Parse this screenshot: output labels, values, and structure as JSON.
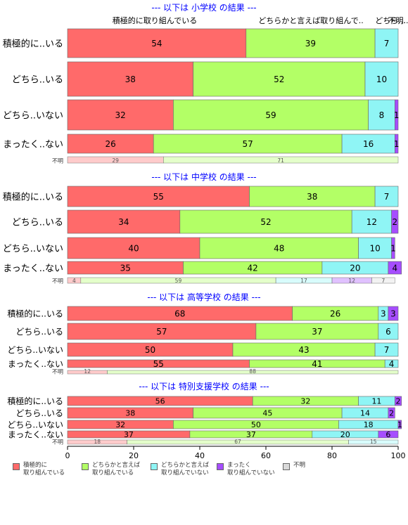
{
  "colors": {
    "c1": "#ff6a6a",
    "c2": "#b3ff66",
    "c3": "#8ff5f5",
    "c4": "#a64dff",
    "c5": "#d9d9d9",
    "title": "#0000ff"
  },
  "legend": [
    {
      "label_1": "積極的に",
      "label_2": "取り組んでいる",
      "color": "#ff6a6a"
    },
    {
      "label_1": "どちらかと言えば",
      "label_2": "取り組んでいる",
      "color": "#b3ff66"
    },
    {
      "label_1": "どちらかと言えば",
      "label_2": "取り組んでいない",
      "color": "#8ff5f5"
    },
    {
      "label_1": "まったく",
      "label_2": "取り組んでいない",
      "color": "#a64dff"
    },
    {
      "label_1": "不明",
      "label_2": "",
      "color": "#d9d9d9"
    }
  ],
  "chart_data": {
    "type": "bar",
    "orientation": "horizontal-stacked",
    "xlim": [
      0,
      100
    ],
    "x_ticks": [
      0,
      20,
      40,
      60,
      80,
      100
    ],
    "header_labels": [
      "積極的に取り組んでいる",
      "どちらかと言えば取り組んで..",
      "どちら...",
      "不明.."
    ],
    "panels": [
      {
        "title": "--- 以下は 小学校 の結果 ---",
        "rows": [
          {
            "label": "積極的に..いる",
            "values": [
              54,
              39,
              7,
              0,
              0
            ]
          },
          {
            "label": "どちら..いる",
            "values": [
              38,
              52,
              10,
              0,
              0
            ]
          },
          {
            "label": "どちら..いない",
            "values": [
              32,
              59,
              8,
              1,
              0
            ]
          },
          {
            "label": "まったく..ない",
            "values": [
              26,
              57,
              16,
              1,
              0
            ]
          }
        ],
        "unknown": {
          "label": "不明",
          "values": [
            29,
            71,
            0,
            0,
            0
          ]
        }
      },
      {
        "title": "--- 以下は 中学校 の結果 ---",
        "rows": [
          {
            "label": "積極的に..いる",
            "values": [
              55,
              38,
              7,
              0,
              0
            ]
          },
          {
            "label": "どちら..いる",
            "values": [
              34,
              52,
              12,
              2,
              0
            ]
          },
          {
            "label": "どちら..いない",
            "values": [
              40,
              48,
              10,
              1,
              0
            ]
          },
          {
            "label": "まったく..ない",
            "values": [
              35,
              42,
              20,
              4,
              0
            ]
          }
        ],
        "unknown": {
          "label": "不明",
          "values": [
            4,
            59,
            17,
            12,
            7
          ]
        }
      },
      {
        "title": "--- 以下は 高等学校 の結果 ---",
        "rows": [
          {
            "label": "積極的に..いる",
            "values": [
              68,
              26,
              3,
              3,
              0
            ]
          },
          {
            "label": "どちら..いる",
            "values": [
              57,
              37,
              6,
              0,
              0
            ]
          },
          {
            "label": "どちら..いない",
            "values": [
              50,
              43,
              7,
              0,
              0
            ]
          },
          {
            "label": "まったく..ない",
            "values": [
              55,
              41,
              4,
              0,
              0
            ]
          }
        ],
        "unknown": {
          "label": "不明",
          "values": [
            12,
            88,
            0,
            0,
            0
          ]
        }
      },
      {
        "title": "--- 以下は 特別支援学校 の結果 ---",
        "rows": [
          {
            "label": "積極的に..いる",
            "values": [
              56,
              32,
              11,
              2,
              0
            ]
          },
          {
            "label": "どちら..いる",
            "values": [
              38,
              45,
              14,
              2,
              0
            ]
          },
          {
            "label": "どちら..いない",
            "values": [
              32,
              50,
              18,
              1,
              0
            ]
          },
          {
            "label": "まったく..ない",
            "values": [
              37,
              37,
              20,
              6,
              0
            ]
          }
        ],
        "unknown": {
          "label": "不明",
          "values": [
            18,
            67,
            15,
            0,
            0
          ]
        }
      }
    ]
  }
}
